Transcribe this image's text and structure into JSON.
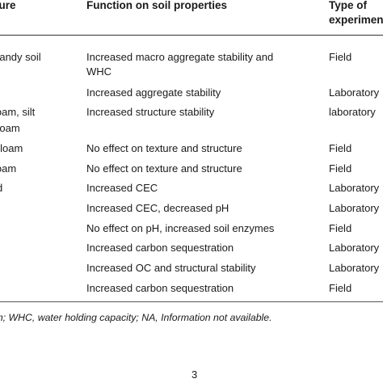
{
  "headers": {
    "col1": "ture",
    "col2": "Function on soil properties",
    "col3_line1": "Type of",
    "col3_line2": "experimen"
  },
  "rows": [
    {
      "col1": "d sandy soil",
      "col2": "Increased macro aggregate stability and",
      "col3": "Field"
    },
    {
      "col1": "",
      "col2": "WHC",
      "col3": ""
    },
    {
      "col1": "",
      "col2": "Increased aggregate stability",
      "col3": "Laboratory"
    },
    {
      "col1": "loam, silt",
      "col2": "Increased structure stability",
      "col3": "laboratory"
    },
    {
      "col1": "l loam",
      "col2": "",
      "col3": ""
    },
    {
      "col1": "lt loam",
      "col2": "No effect on texture and structure",
      "col3": "Field"
    },
    {
      "col1": "loam",
      "col2": "No effect on texture and structure",
      "col3": "Field"
    },
    {
      "col1": "d",
      "col2": "Increased CEC",
      "col3": "Laboratory"
    },
    {
      "col1": "",
      "col2": "Increased CEC, decreased pH",
      "col3": "Laboratory"
    },
    {
      "col1": "",
      "col2": "No effect on pH, increased soil enzymes",
      "col3": "Field"
    },
    {
      "col1": "t",
      "col2": "Increased carbon sequestration",
      "col3": "Laboratory"
    },
    {
      "col1": "",
      "col2": "Increased OC and structural stability",
      "col3": "Laboratory"
    },
    {
      "col1": "",
      "col2": "Increased carbon sequestration",
      "col3": "Field"
    }
  ],
  "footnote": "on; WHC, water holding capacity; NA, Information not available.",
  "page_number": "3"
}
